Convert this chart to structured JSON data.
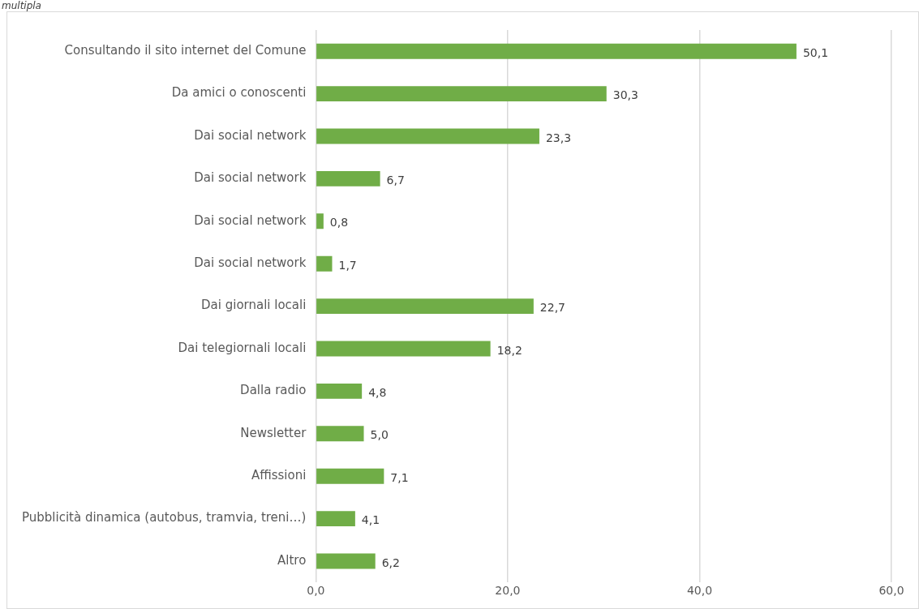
{
  "chart_data": {
    "type": "bar",
    "orientation": "horizontal",
    "subtitle": "multipla",
    "categories": [
      "Consultando il sito internet del Comune",
      "Da amici o conoscenti",
      "Dai social network",
      "Dai social network",
      "Dai social network",
      "Dai social network",
      "Dai giornali locali",
      "Dai telegiornali locali",
      "Dalla radio",
      "Newsletter",
      "Affissioni",
      "Pubblicità dinamica (autobus, tramvia, treni…)",
      "Altro"
    ],
    "values": [
      50.1,
      30.3,
      23.3,
      6.7,
      0.8,
      1.7,
      22.7,
      18.2,
      4.8,
      5.0,
      7.1,
      4.1,
      6.2
    ],
    "value_labels": [
      "50,1",
      "30,3",
      "23,3",
      "6,7",
      "0,8",
      "1,7",
      "22,7",
      "18,2",
      "4,8",
      "5,0",
      "7,1",
      "4,1",
      "6,2"
    ],
    "color": "#70ad47",
    "xlim": [
      0,
      60
    ],
    "xticks": [
      {
        "value": 0,
        "label": "0,0"
      },
      {
        "value": 20,
        "label": "20,0"
      },
      {
        "value": 40,
        "label": "40,0"
      },
      {
        "value": 60,
        "label": "60,0"
      }
    ],
    "grid": "x",
    "legend": false
  }
}
